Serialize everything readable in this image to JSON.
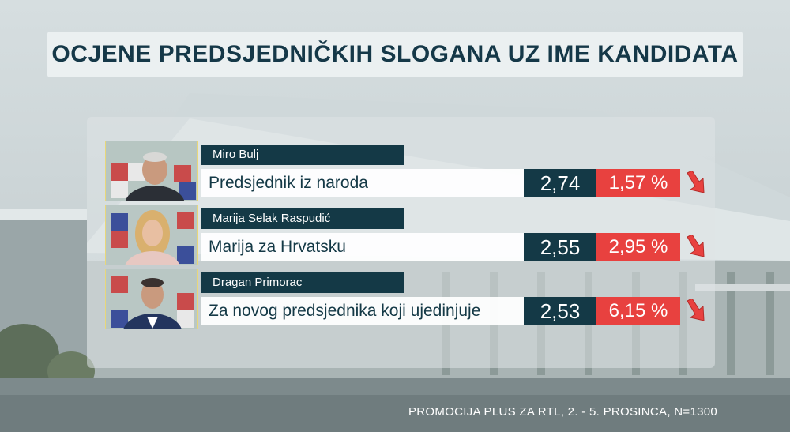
{
  "title": "OCJENE PREDSJEDNIČKIH SLOGANA UZ IME KANDIDATA",
  "source": "PROMOCIJA PLUS ZA RTL, 2. - 5. PROSINCA, N=1300",
  "colors": {
    "navy": "#143946",
    "red": "#e8413f",
    "title_text": "#153848"
  },
  "chart_data": {
    "type": "table",
    "title": "OCJENE PREDSJEDNIČKIH SLOGANA UZ IME KANDIDATA",
    "columns": [
      "name",
      "slogan",
      "score",
      "percent",
      "trend"
    ],
    "rows": [
      {
        "name": "Miro Bulj",
        "slogan": "Predsjednik iz naroda",
        "score": "2,74",
        "percent": "1,57 %",
        "trend": "down-arrow-icon"
      },
      {
        "name": "Marija Selak Raspudić",
        "slogan": "Marija za Hrvatsku",
        "score": "2,55",
        "percent": "2,95 %",
        "trend": "down-arrow-icon"
      },
      {
        "name": "Dragan Primorac",
        "slogan": "Za novog predsjednika koji ujedinjuje",
        "score": "2,53",
        "percent": "6,15 %",
        "trend": "down-arrow-icon"
      }
    ]
  }
}
